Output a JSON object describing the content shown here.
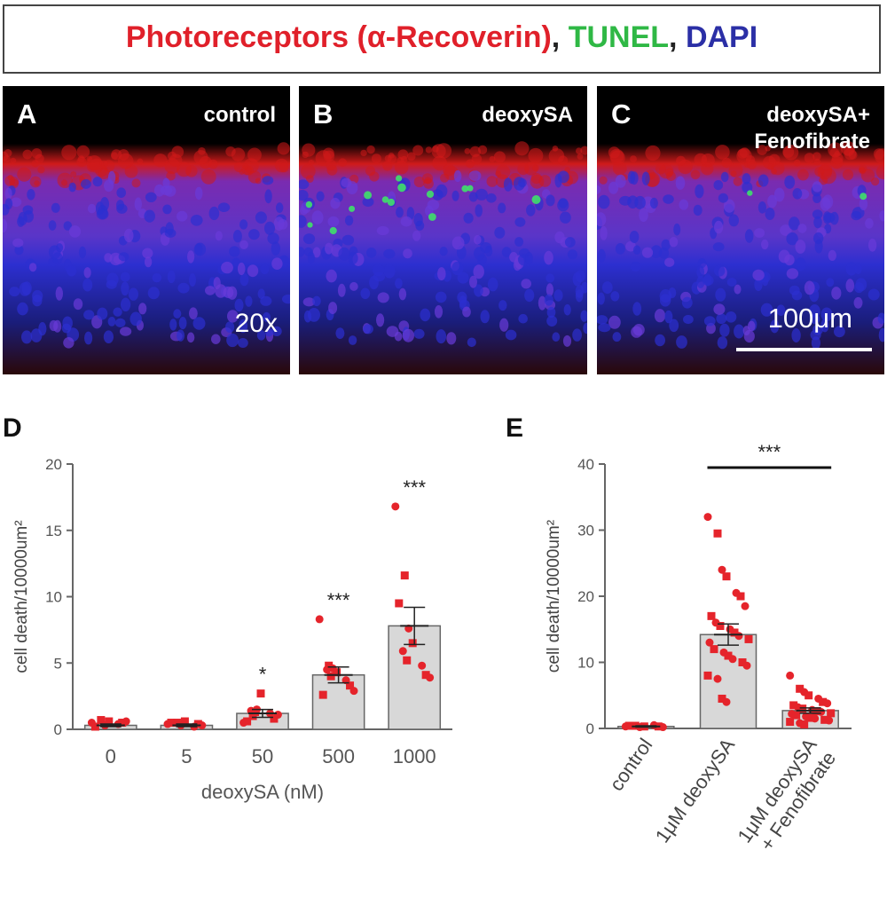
{
  "figure_legend": {
    "parts": [
      {
        "text": "Photoreceptors (α-Recoverin)",
        "color": "#e0202a"
      },
      {
        "text": ", ",
        "color": "#222222"
      },
      {
        "text": "TUNEL",
        "color": "#2fb845"
      },
      {
        "text": ", ",
        "color": "#222222"
      },
      {
        "text": "DAPI",
        "color": "#2b2fa6"
      }
    ]
  },
  "panels": [
    {
      "label": "A",
      "condition": "control",
      "overlay": "20x"
    },
    {
      "label": "B",
      "condition": "deoxySA",
      "overlay": ""
    },
    {
      "label": "C",
      "condition": "deoxySA+\nFenofibrate",
      "overlay": "100μm"
    }
  ],
  "colors": {
    "bar_fill": "#d8d8d8",
    "point": "#e5242b",
    "axis": "#666666",
    "stain_red": "#d01a1a",
    "stain_blue": "#2c2fd0",
    "stain_green": "#3fe06a"
  },
  "chart_data": [
    {
      "panel": "D",
      "type": "bar",
      "xlabel": "deoxySA (nM)",
      "ylabel": "cell death/10000um²",
      "ylim": [
        0,
        20
      ],
      "yticks": [
        0,
        5,
        10,
        15,
        20
      ],
      "categories": [
        "0",
        "5",
        "50",
        "500",
        "1000"
      ],
      "values": [
        0.3,
        0.3,
        1.2,
        4.1,
        7.8
      ],
      "errors": [
        0.1,
        0.1,
        0.3,
        0.6,
        1.4
      ],
      "significance": [
        "",
        "",
        "*",
        "***",
        "***"
      ],
      "points": [
        [
          0.5,
          0.7,
          0.3,
          0.6,
          0.4,
          0.5,
          0.6,
          0.2
        ],
        [
          0.4,
          0.5,
          0.3,
          0.6,
          0.2,
          0.4,
          0.3,
          0.5
        ],
        [
          0.5,
          1.0,
          1.5,
          2.7,
          1.2,
          0.8,
          1.1,
          0.6,
          1.4,
          1.3
        ],
        [
          8.3,
          4.8,
          4.6,
          4.3,
          3.7,
          3.3,
          2.9,
          2.6,
          4.5,
          4.0
        ],
        [
          16.8,
          11.6,
          7.6,
          6.5,
          4.8,
          4.1,
          3.9,
          9.5,
          5.9,
          5.2
        ]
      ]
    },
    {
      "panel": "E",
      "type": "bar",
      "xlabel": "",
      "ylabel": "cell death/10000um²",
      "ylim": [
        0,
        40
      ],
      "yticks": [
        0,
        10,
        20,
        30,
        40
      ],
      "categories": [
        "control",
        "1μM deoxySA",
        "1μM deoxySA\n+ Fenofibrate"
      ],
      "values": [
        0.3,
        14.2,
        2.7
      ],
      "errors": [
        0.1,
        1.6,
        0.4
      ],
      "significance_bracket": {
        "from": 1,
        "to": 2,
        "label": "***"
      },
      "points": [
        [
          0.3,
          0.4,
          0.2,
          0.3,
          0.5,
          0.3,
          0.2,
          0.4
        ],
        [
          32.0,
          29.5,
          24.0,
          23.0,
          20.5,
          20.0,
          18.5,
          17.0,
          16.0,
          15.5,
          15.0,
          14.5,
          14.0,
          13.5,
          13.0,
          12.0,
          11.5,
          11.0,
          10.5,
          10.0,
          9.5,
          8.0,
          7.5,
          4.5,
          4.0
        ],
        [
          8.0,
          6.0,
          5.5,
          5.0,
          4.5,
          4.0,
          3.8,
          3.5,
          3.2,
          3.0,
          2.8,
          2.6,
          2.5,
          2.3,
          2.2,
          2.0,
          1.8,
          1.6,
          1.5,
          1.3,
          1.2,
          1.0,
          0.8,
          0.6
        ]
      ]
    }
  ]
}
